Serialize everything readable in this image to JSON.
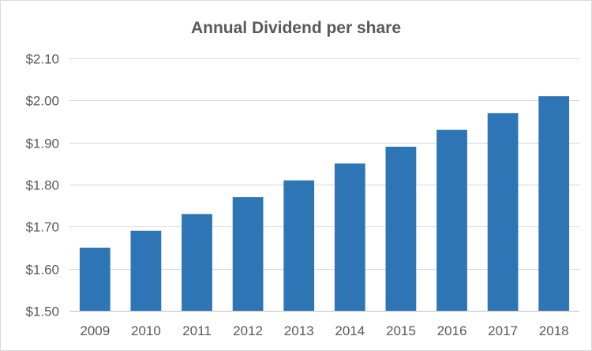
{
  "chart_data": {
    "type": "bar",
    "title": "Annual Dividend per share",
    "xlabel": "",
    "ylabel": "",
    "categories": [
      "2009",
      "2010",
      "2011",
      "2012",
      "2013",
      "2014",
      "2015",
      "2016",
      "2017",
      "2018"
    ],
    "values": [
      1.65,
      1.69,
      1.73,
      1.77,
      1.81,
      1.85,
      1.89,
      1.93,
      1.97,
      2.01
    ],
    "ylim": [
      1.5,
      2.1
    ],
    "yticks": [
      1.5,
      1.6,
      1.7,
      1.8,
      1.9,
      2.0,
      2.1
    ],
    "ytick_labels": [
      "$1.50",
      "$1.60",
      "$1.70",
      "$1.80",
      "$1.90",
      "$2.00",
      "$2.10"
    ],
    "grid": true,
    "legend": "none",
    "bar_color": "#2e75b6"
  }
}
